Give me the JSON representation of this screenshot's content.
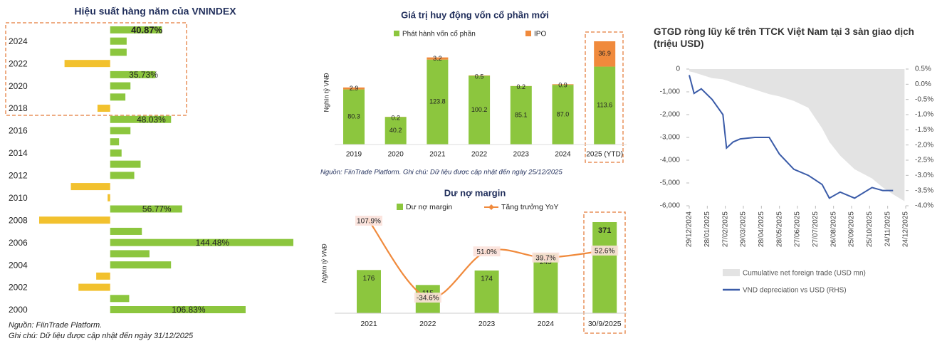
{
  "chart_data": [
    {
      "type": "bar",
      "orientation": "horizontal",
      "title": "Hiệu suất hàng năm của VNINDEX",
      "categories": [
        null,
        "2024",
        null,
        "2022",
        null,
        "2020",
        null,
        "2018",
        null,
        "2016",
        null,
        "2014",
        null,
        "2012",
        null,
        "2010",
        null,
        "2008",
        null,
        "2006",
        null,
        "2004",
        null,
        "2002",
        null,
        "2000"
      ],
      "values": [
        40.87,
        13,
        13,
        -36,
        35.73,
        16,
        12,
        -10,
        48.03,
        16,
        7,
        9,
        24,
        19,
        -31,
        -2,
        56.77,
        -56,
        25,
        144.48,
        31,
        48,
        -11,
        -25,
        15,
        106.83
      ],
      "value_labels": [
        "40.87%",
        null,
        null,
        null,
        "35.73%",
        null,
        null,
        null,
        "48.03%",
        null,
        null,
        null,
        null,
        null,
        null,
        null,
        "56.77%",
        null,
        null,
        "144.48%",
        null,
        null,
        null,
        null,
        null,
        "106.83%"
      ],
      "color": "#8cc63e",
      "negative_color": "#f2c12e",
      "notes": [
        "Nguồn: FiinTrade Platform.",
        "Ghi chú: Dữ liệu được cập nhật đến ngày 31/12/2025"
      ]
    },
    {
      "type": "bar",
      "stacked": true,
      "title": "Giá trị huy động vốn cổ phần mới",
      "y_label": "Nghìn tỷ VNĐ",
      "categories": [
        "2019",
        "2020",
        "2021",
        "2022",
        "2023",
        "2024",
        "2025 (YTD)"
      ],
      "series": [
        {
          "name": "Phát hành vốn cổ phần",
          "color": "#8cc63e",
          "values": [
            80.3,
            40.2,
            123.8,
            100.2,
            85.1,
            87.0,
            113.6
          ],
          "value_labels": [
            "80.3",
            "40.2",
            "123.8",
            "100.2",
            "85.1",
            "87.0",
            "113.6"
          ]
        },
        {
          "name": "IPO",
          "color": "#f08a3c",
          "values": [
            2.9,
            0.2,
            3.2,
            0.5,
            0.2,
            0.9,
            36.9
          ]
        }
      ],
      "note": "Nguồn: FiinTrade Platform. Ghi chú: Dữ liệu được cập nhật đến ngày 25/12/2025"
    },
    {
      "type": "combo",
      "title": "Dư nợ margin",
      "y_label": "Nghìn tỷ VNĐ",
      "categories": [
        "2021",
        "2022",
        "2023",
        "2024",
        "30/9/2025"
      ],
      "series": [
        {
          "name": "Dư nợ margin",
          "type": "bar",
          "color": "#8cc63e",
          "values": [
            176,
            115,
            174,
            243,
            371
          ]
        },
        {
          "name": "Tăng trưởng YoY",
          "type": "line",
          "color": "#f08a3c",
          "values": [
            107.9,
            -34.6,
            51.0,
            39.7,
            52.6
          ],
          "value_labels": [
            "107.9%",
            "-34.6%",
            "51.0%",
            "39.7%",
            "52.6%"
          ]
        }
      ]
    },
    {
      "type": "combo",
      "title": "GTGD ròng lũy kế trên TTCK Việt Nam tại 3 sàn giao dịch (triệu USD)",
      "x": [
        "29/12/2024",
        "06/01/2025",
        "18/01/2025",
        "05/02/2025",
        "23/02/2025",
        "01/03/2025",
        "12/03/2025",
        "24/03/2025",
        "17/04/2025",
        "11/05/2025",
        "28/05/2025",
        "21/06/2025",
        "15/07/2025",
        "07/08/2025",
        "19/08/2025",
        "06/09/2025",
        "30/09/2025",
        "29/10/2025",
        "16/11/2025",
        "03/12/2025",
        "22/12/2025"
      ],
      "xlim": [
        "29/12/2024",
        "24/12/2025"
      ],
      "xticks": [
        "29/12/2024",
        "28/01/2025",
        "27/02/2025",
        "29/03/2025",
        "28/04/2025",
        "28/05/2025",
        "27/06/2025",
        "27/07/2025",
        "26/08/2025",
        "25/09/2025",
        "25/10/2025",
        "24/11/2025",
        "24/12/2025"
      ],
      "ylim": [
        -6000,
        0
      ],
      "yticks": [
        0,
        {
          "value": -1000,
          "label": "-1,000"
        },
        {
          "value": -2000,
          "label": "-2,000"
        },
        {
          "value": -3000,
          "label": "-3,000"
        },
        {
          "value": -4000,
          "label": "-4,000"
        },
        {
          "value": -5000,
          "label": "-5,000"
        },
        {
          "value": -6000,
          "label": "-6,000"
        }
      ],
      "y2lim": [
        -4.0,
        0.5
      ],
      "y2ticks": [
        {
          "value": 0.5,
          "label": "0.5%"
        },
        {
          "value": 0,
          "label": "0.0%"
        },
        {
          "value": -0.5,
          "label": "-0.5%"
        },
        {
          "value": -1.0,
          "label": "-1.0%"
        },
        {
          "value": -1.5,
          "label": "-1.5%"
        },
        {
          "value": -2.0,
          "label": "-2.0%"
        },
        {
          "value": -2.5,
          "label": "-2.5%"
        },
        {
          "value": -3.0,
          "label": "-3.0%"
        },
        {
          "value": -3.5,
          "label": "-3.5%"
        },
        {
          "value": -4.0,
          "label": "-4.0%"
        }
      ],
      "series": [
        {
          "name": "Cumulative net foreign trade (USD mn)",
          "type": "area",
          "color": "#e3e3e3",
          "values": [
            -100,
            -150,
            -250,
            -400,
            -450,
            -500,
            -600,
            -700,
            -900,
            -1100,
            -1200,
            -1400,
            -1700,
            -2600,
            -3200,
            -3800,
            -4400,
            -4800,
            -5200,
            -5500,
            -5800
          ]
        },
        {
          "name": "VND depreciation vs USD (RHS)",
          "type": "line",
          "axis": "y2",
          "color": "#3a5ba8",
          "values": [
            0.3,
            -0.3,
            -0.15,
            -0.5,
            -1.0,
            -2.1,
            -1.9,
            -1.8,
            -1.75,
            -1.75,
            -2.3,
            -2.8,
            -3.0,
            -3.3,
            -3.75,
            -3.55,
            -3.75,
            -3.4,
            -3.5,
            -3.5,
            null
          ]
        }
      ]
    }
  ]
}
